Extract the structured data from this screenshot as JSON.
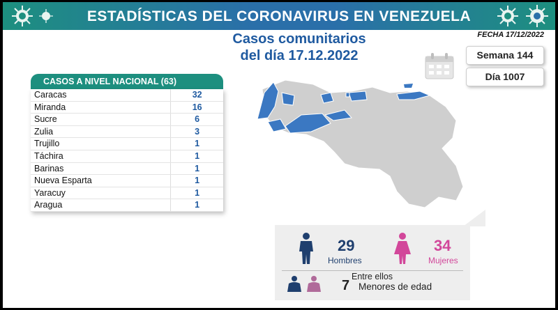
{
  "header": {
    "title": "ESTADÍSTICAS DEL CORONAVIRUS EN VENEZUELA",
    "subtitle_line1": "Casos comunitarios",
    "subtitle_line2": "del día 17.12.2022",
    "fecha": "FECHA 17/12/2022",
    "semana": "Semana 144",
    "dia": "Día 1007"
  },
  "table": {
    "header_label": "CASOS A NIVEL NACIONAL",
    "header_total": "(63)",
    "rows": [
      {
        "state": "Caracas",
        "count": "32"
      },
      {
        "state": "Miranda",
        "count": "16"
      },
      {
        "state": "Sucre",
        "count": "6"
      },
      {
        "state": "Zulia",
        "count": "3"
      },
      {
        "state": "Trujillo",
        "count": "1"
      },
      {
        "state": "Táchira",
        "count": "1"
      },
      {
        "state": "Barinas",
        "count": "1"
      },
      {
        "state": "Nueva Esparta",
        "count": "1"
      },
      {
        "state": "Yaracuy",
        "count": "1"
      },
      {
        "state": "Aragua",
        "count": "1"
      }
    ]
  },
  "stats": {
    "men_count": "29",
    "men_label": "Hombres",
    "women_count": "34",
    "women_label": "Mujeres",
    "minors_intro": "Entre ellos",
    "minors_count": "7",
    "minors_label": "Menores de edad"
  },
  "colors": {
    "banner": "#2a6fa9",
    "teal": "#1d8f7f",
    "blue": "#1f5aa0",
    "women": "#d2479a",
    "men": "#1f3f6e",
    "map_grey": "#cfcfcf",
    "map_blue": "#3b78c2"
  },
  "icons": [
    "virus-icon",
    "calendar-icon",
    "man-icon",
    "woman-icon",
    "couple-icon"
  ]
}
